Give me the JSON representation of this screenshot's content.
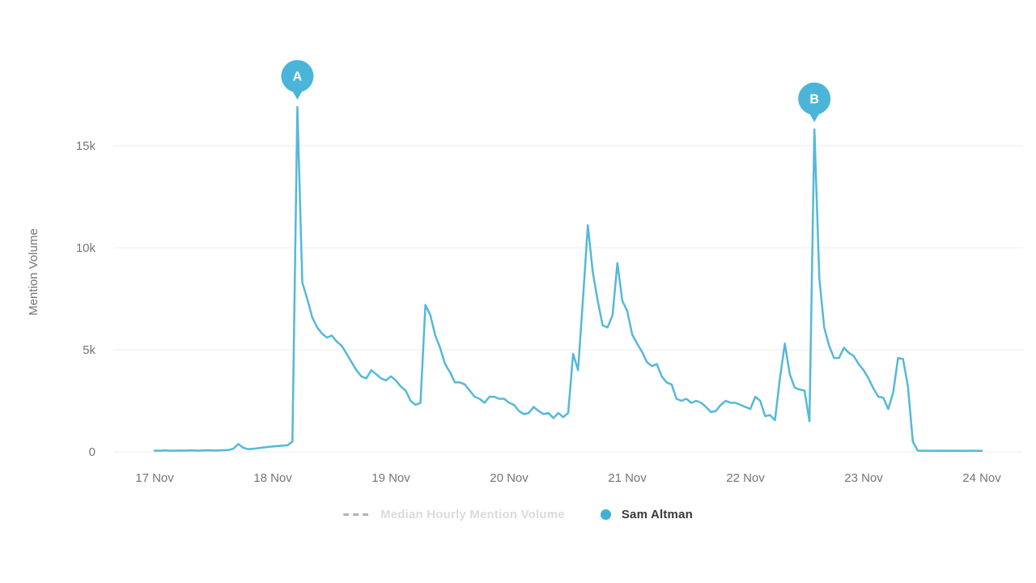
{
  "y_axis": {
    "label": "Mention Volume",
    "ticks": [
      {
        "value": 0,
        "label": "0"
      },
      {
        "value": 5000,
        "label": "5k"
      },
      {
        "value": 10000,
        "label": "10k"
      },
      {
        "value": 15000,
        "label": "15k"
      }
    ]
  },
  "x_axis": {
    "ticks": [
      "17 Nov",
      "18 Nov",
      "19 Nov",
      "20 Nov",
      "21 Nov",
      "22 Nov",
      "23 Nov",
      "24 Nov"
    ]
  },
  "legend": {
    "median_label": "Median Hourly Mention Volume",
    "series_label": "Sam Altman",
    "median_swatch_color": "#b3b3b3",
    "median_text_color": "#dbdbdb",
    "series_dot_color": "#3fb0d6"
  },
  "colors": {
    "line": "#55b8d9",
    "marker": "#4bb5d9",
    "grid": "#ebebeb",
    "axis_text": "#757575"
  },
  "chart_data": {
    "type": "line",
    "title": "",
    "xlabel": "",
    "ylabel": "Mention Volume",
    "x_tick_labels": [
      "17 Nov",
      "18 Nov",
      "19 Nov",
      "20 Nov",
      "21 Nov",
      "22 Nov",
      "23 Nov",
      "24 Nov"
    ],
    "x_unit": "hours from 17 Nov 00:00 to 24 Nov 00:00",
    "ylim": [
      0,
      17500
    ],
    "y_ticks": [
      0,
      5000,
      10000,
      15000
    ],
    "grid": true,
    "legend_position": "bottom-center",
    "hidden_series": [
      {
        "name": "Median Hourly Mention Volume",
        "style": "dashed",
        "visible": false
      }
    ],
    "annotations": [
      {
        "label": "A",
        "hour_index": 29,
        "value": 16900
      },
      {
        "label": "B",
        "hour_index": 134,
        "value": 15800
      }
    ],
    "series": [
      {
        "name": "Sam Altman",
        "color": "#55b8d9",
        "values": [
          60,
          55,
          70,
          60,
          55,
          65,
          60,
          70,
          65,
          60,
          70,
          75,
          65,
          70,
          80,
          90,
          150,
          380,
          200,
          130,
          150,
          180,
          210,
          240,
          260,
          280,
          300,
          320,
          500,
          16900,
          8300,
          7500,
          6600,
          6100,
          5800,
          5600,
          5700,
          5400,
          5200,
          4800,
          4400,
          4000,
          3700,
          3600,
          4000,
          3800,
          3600,
          3500,
          3700,
          3500,
          3200,
          3000,
          2500,
          2300,
          2400,
          7200,
          6700,
          5700,
          5100,
          4300,
          3900,
          3400,
          3400,
          3300,
          3000,
          2700,
          2600,
          2400,
          2700,
          2700,
          2600,
          2600,
          2400,
          2300,
          2000,
          1850,
          1900,
          2200,
          2000,
          1850,
          1900,
          1650,
          1900,
          1700,
          1900,
          4800,
          4000,
          7500,
          11100,
          8800,
          7400,
          6200,
          6100,
          6700,
          9250,
          7400,
          6900,
          5750,
          5300,
          4900,
          4400,
          4200,
          4300,
          3700,
          3400,
          3300,
          2600,
          2500,
          2600,
          2400,
          2500,
          2400,
          2200,
          1950,
          2000,
          2300,
          2500,
          2400,
          2400,
          2300,
          2200,
          2100,
          2700,
          2500,
          1750,
          1800,
          1550,
          3600,
          5300,
          3800,
          3150,
          3050,
          3000,
          1500,
          15800,
          8500,
          6100,
          5200,
          4600,
          4600,
          5100,
          4850,
          4700,
          4300,
          4000,
          3600,
          3100,
          2700,
          2650,
          2100,
          2900,
          4600,
          4550,
          3200,
          500,
          60,
          50,
          55,
          50,
          55,
          50,
          55,
          50,
          55,
          50,
          50,
          55,
          50,
          50
        ]
      }
    ]
  }
}
